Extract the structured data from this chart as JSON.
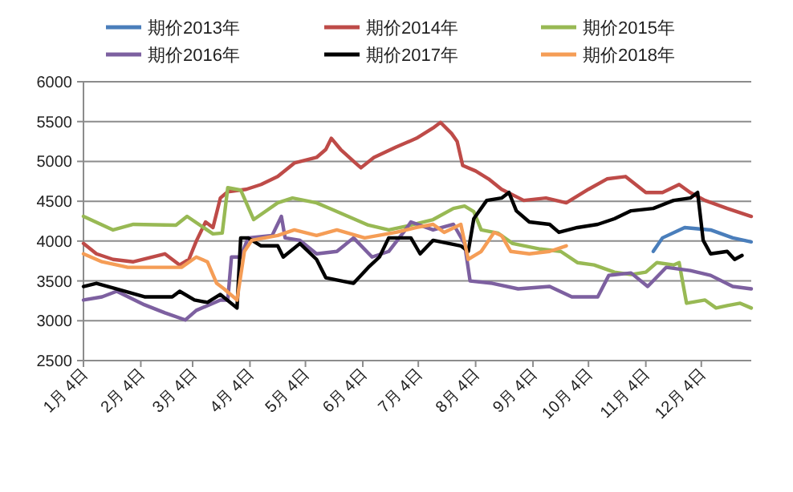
{
  "chart_data": {
    "type": "line",
    "ylim": [
      2500,
      6000
    ],
    "yticks": [
      2500,
      3000,
      3500,
      4000,
      4500,
      5000,
      5500,
      6000
    ],
    "xlim": [
      "--01-04",
      "--12-31"
    ],
    "xticks": [
      {
        "value": "--01-04",
        "label": "1月 4日"
      },
      {
        "value": "--02-04",
        "label": "2月 4日"
      },
      {
        "value": "--03-04",
        "label": "3月 4日"
      },
      {
        "value": "--04-04",
        "label": "4月 4日"
      },
      {
        "value": "--05-04",
        "label": "5月 4日"
      },
      {
        "value": "--06-04",
        "label": "6月 4日"
      },
      {
        "value": "--07-04",
        "label": "7月 4日"
      },
      {
        "value": "--08-04",
        "label": "8月 4日"
      },
      {
        "value": "--09-04",
        "label": "9月 4日"
      },
      {
        "value": "--10-04",
        "label": "10月 4日"
      },
      {
        "value": "--11-04",
        "label": "11月 4日"
      },
      {
        "value": "--12-04",
        "label": "12月 4日"
      }
    ],
    "grid": "y",
    "legend": "top",
    "marker": "none",
    "line_style": "solid",
    "series": [
      {
        "name": "期价2013年",
        "color": "#4a7ebb",
        "x": [
          "--11-08",
          "--11-13",
          "--11-25",
          "--12-09",
          "--12-21",
          "--12-31"
        ],
        "values": [
          3870,
          4040,
          4170,
          4140,
          4040,
          3990
        ]
      },
      {
        "name": "期价2014年",
        "color": "#be4b48",
        "x": [
          "--01-04",
          "--01-11",
          "--01-20",
          "--01-31",
          "--02-17",
          "--02-25",
          "--03-02",
          "--03-06",
          "--03-11",
          "--03-15",
          "--03-19",
          "--03-23",
          "--04-02",
          "--04-10",
          "--04-19",
          "--04-28",
          "--05-10",
          "--05-15",
          "--05-18",
          "--05-23",
          "--05-31",
          "--06-03",
          "--06-10",
          "--06-22",
          "--07-03",
          "--07-12",
          "--07-16",
          "--07-22",
          "--07-25",
          "--07-28",
          "--08-04",
          "--08-11",
          "--08-18",
          "--08-30",
          "--09-11",
          "--09-22",
          "--10-04",
          "--10-14",
          "--10-24",
          "--11-04",
          "--11-13",
          "--11-22",
          "--11-28",
          "--12-06",
          "--12-18",
          "--12-31"
        ],
        "values": [
          3970,
          3840,
          3770,
          3740,
          3840,
          3700,
          3770,
          4000,
          4240,
          4170,
          4540,
          4620,
          4650,
          4710,
          4810,
          4980,
          5050,
          5150,
          5290,
          5150,
          4980,
          4920,
          5050,
          5180,
          5290,
          5420,
          5490,
          5350,
          5250,
          4950,
          4880,
          4780,
          4650,
          4510,
          4540,
          4480,
          4650,
          4780,
          4810,
          4610,
          4610,
          4710,
          4610,
          4510,
          4410,
          4310
        ]
      },
      {
        "name": "期价2015年",
        "color": "#98b954",
        "x": [
          "--01-04",
          "--01-20",
          "--01-31",
          "--02-23",
          "--03-01",
          "--03-15",
          "--03-20",
          "--03-23",
          "--03-30",
          "--04-06",
          "--04-19",
          "--04-27",
          "--05-10",
          "--05-18",
          "--05-27",
          "--06-07",
          "--06-18",
          "--06-30",
          "--07-12",
          "--07-23",
          "--07-29",
          "--08-03",
          "--08-07",
          "--08-16",
          "--08-24",
          "--09-08",
          "--09-19",
          "--09-28",
          "--10-07",
          "--10-18",
          "--10-27",
          "--11-04",
          "--11-10",
          "--11-19",
          "--11-22",
          "--11-26",
          "--12-06",
          "--12-12",
          "--12-18",
          "--12-25",
          "--12-31"
        ],
        "values": [
          4310,
          4140,
          4210,
          4200,
          4310,
          4090,
          4100,
          4670,
          4640,
          4270,
          4480,
          4540,
          4480,
          4400,
          4310,
          4200,
          4140,
          4200,
          4270,
          4410,
          4440,
          4370,
          4140,
          4100,
          3970,
          3900,
          3870,
          3730,
          3700,
          3610,
          3580,
          3610,
          3730,
          3700,
          3730,
          3220,
          3260,
          3160,
          3190,
          3220,
          3160
        ]
      },
      {
        "name": "期价2016年",
        "color": "#7d60a0",
        "x": [
          "--01-04",
          "--01-14",
          "--01-22",
          "--02-06",
          "--02-17",
          "--02-28",
          "--03-06",
          "--03-19",
          "--03-23",
          "--03-25",
          "--03-30",
          "--04-03",
          "--04-16",
          "--04-21",
          "--04-23",
          "--05-01",
          "--05-10",
          "--05-21",
          "--05-30",
          "--06-09",
          "--06-18",
          "--06-27",
          "--06-30",
          "--07-12",
          "--07-23",
          "--07-29",
          "--08-01",
          "--08-13",
          "--08-27",
          "--09-13",
          "--09-25",
          "--10-09",
          "--10-15",
          "--10-27",
          "--11-05",
          "--11-15",
          "--11-28",
          "--12-09",
          "--12-21",
          "--12-31"
        ],
        "values": [
          3260,
          3300,
          3370,
          3200,
          3100,
          3010,
          3130,
          3260,
          3260,
          3800,
          3800,
          4040,
          4070,
          4310,
          4040,
          4010,
          3840,
          3870,
          4040,
          3800,
          3870,
          4140,
          4240,
          4140,
          4210,
          3970,
          3500,
          3470,
          3400,
          3430,
          3300,
          3300,
          3570,
          3600,
          3430,
          3670,
          3630,
          3570,
          3430,
          3400
        ]
      },
      {
        "name": "期价2017年",
        "color": "#000000",
        "x": [
          "--01-04",
          "--01-11",
          "--01-22",
          "--02-06",
          "--02-21",
          "--02-25",
          "--03-05",
          "--03-12",
          "--03-19",
          "--03-28",
          "--03-30",
          "--04-03",
          "--04-10",
          "--04-19",
          "--04-22",
          "--05-01",
          "--05-10",
          "--05-15",
          "--05-30",
          "--06-07",
          "--06-13",
          "--06-18",
          "--06-30",
          "--07-05",
          "--07-12",
          "--07-27",
          "--07-31",
          "--08-03",
          "--08-10",
          "--08-18",
          "--08-22",
          "--08-26",
          "--09-02",
          "--09-13",
          "--09-18",
          "--09-28",
          "--10-09",
          "--10-18",
          "--10-27",
          "--11-08",
          "--11-19",
          "--11-28",
          "--12-02",
          "--12-05",
          "--12-09",
          "--12-18",
          "--12-22",
          "--12-26"
        ],
        "values": [
          3430,
          3470,
          3400,
          3300,
          3300,
          3370,
          3260,
          3230,
          3330,
          3160,
          4040,
          4040,
          3940,
          3940,
          3800,
          3970,
          3770,
          3540,
          3470,
          3670,
          3800,
          4040,
          4040,
          3840,
          4010,
          3940,
          3870,
          4280,
          4510,
          4540,
          4610,
          4380,
          4240,
          4210,
          4110,
          4170,
          4210,
          4280,
          4380,
          4410,
          4510,
          4540,
          4610,
          4010,
          3840,
          3870,
          3770,
          3820
        ]
      },
      {
        "name": "期价2018年",
        "color": "#f59d56",
        "x": [
          "--01-04",
          "--01-14",
          "--01-28",
          "--02-26",
          "--03-06",
          "--03-12",
          "--03-17",
          "--03-21",
          "--03-28",
          "--04-01",
          "--04-05",
          "--04-19",
          "--04-28",
          "--05-10",
          "--05-21",
          "--06-05",
          "--06-22",
          "--07-03",
          "--07-12",
          "--07-18",
          "--07-27",
          "--07-31",
          "--08-07",
          "--08-14",
          "--08-18",
          "--08-23",
          "--09-02",
          "--09-13",
          "--09-22"
        ],
        "values": [
          3840,
          3740,
          3670,
          3670,
          3800,
          3740,
          3470,
          3400,
          3260,
          3870,
          4010,
          4070,
          4140,
          4070,
          4140,
          4040,
          4110,
          4170,
          4210,
          4110,
          4210,
          3770,
          3870,
          4110,
          4070,
          3870,
          3840,
          3870,
          3940
        ]
      }
    ]
  }
}
